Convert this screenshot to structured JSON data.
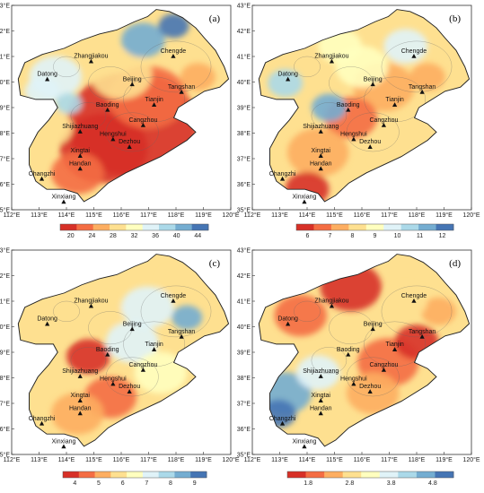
{
  "axes": {
    "lon_labels": [
      "112°E",
      "113°E",
      "114°E",
      "115°E",
      "116°E",
      "117°E",
      "118°E",
      "119°E",
      "120°E"
    ],
    "lat_labels": [
      "43°E",
      "42°E",
      "41°E",
      "40°E",
      "39°E",
      "38°E",
      "37°E",
      "36°E",
      "35°E"
    ]
  },
  "cities": [
    {
      "name": "Zhangjiakou",
      "lon": 114.9,
      "lat": 40.8
    },
    {
      "name": "Chengde",
      "lon": 117.9,
      "lat": 41.0
    },
    {
      "name": "Datong",
      "lon": 113.3,
      "lat": 40.1
    },
    {
      "name": "Beijing",
      "lon": 116.4,
      "lat": 39.9
    },
    {
      "name": "Tangshan",
      "lon": 118.2,
      "lat": 39.6
    },
    {
      "name": "Tianjin",
      "lon": 117.2,
      "lat": 39.1
    },
    {
      "name": "Baoding",
      "lon": 115.5,
      "lat": 38.9
    },
    {
      "name": "Cangzhou",
      "lon": 116.8,
      "lat": 38.3
    },
    {
      "name": "Shijiazhuang",
      "lon": 114.5,
      "lat": 38.05
    },
    {
      "name": "Hengshui",
      "lon": 115.7,
      "lat": 37.75
    },
    {
      "name": "Dezhou",
      "lon": 116.3,
      "lat": 37.45
    },
    {
      "name": "Xingtai",
      "lon": 114.5,
      "lat": 37.1
    },
    {
      "name": "Handan",
      "lon": 114.5,
      "lat": 36.6
    },
    {
      "name": "Changzhi",
      "lon": 113.1,
      "lat": 36.2
    },
    {
      "name": "Xinxiang",
      "lon": 113.9,
      "lat": 35.3
    }
  ],
  "panels": [
    {
      "label": "(a)",
      "colorbar_ticks": [
        "20",
        "24",
        "28",
        "32",
        "36",
        "40",
        "44"
      ],
      "palette": [
        "#d73027",
        "#f46d43",
        "#fdae61",
        "#fee090",
        "#ffffbf",
        "#e0f3f8",
        "#abd9e9",
        "#74add1",
        "#4575b4"
      ]
    },
    {
      "label": "(b)",
      "colorbar_ticks": [
        "6",
        "7",
        "8",
        "9",
        "10",
        "11",
        "12"
      ],
      "palette": [
        "#d73027",
        "#f46d43",
        "#fdae61",
        "#fee090",
        "#ffffbf",
        "#e0f3f8",
        "#abd9e9",
        "#74add1",
        "#4575b4"
      ]
    },
    {
      "label": "(c)",
      "colorbar_ticks": [
        "4",
        "5",
        "6",
        "7",
        "8",
        "9"
      ],
      "palette": [
        "#d73027",
        "#f46d43",
        "#fdae61",
        "#fee090",
        "#ffffbf",
        "#e0f3f8",
        "#abd9e9",
        "#74add1",
        "#4575b4"
      ]
    },
    {
      "label": "(d)",
      "colorbar_ticks": [
        "1.8",
        "2.8",
        "3.8",
        "4.8"
      ],
      "palette": [
        "#d73027",
        "#f46d43",
        "#fdae61",
        "#fee090",
        "#ffffbf",
        "#e0f3f8",
        "#abd9e9",
        "#74add1",
        "#4575b4"
      ]
    }
  ]
}
